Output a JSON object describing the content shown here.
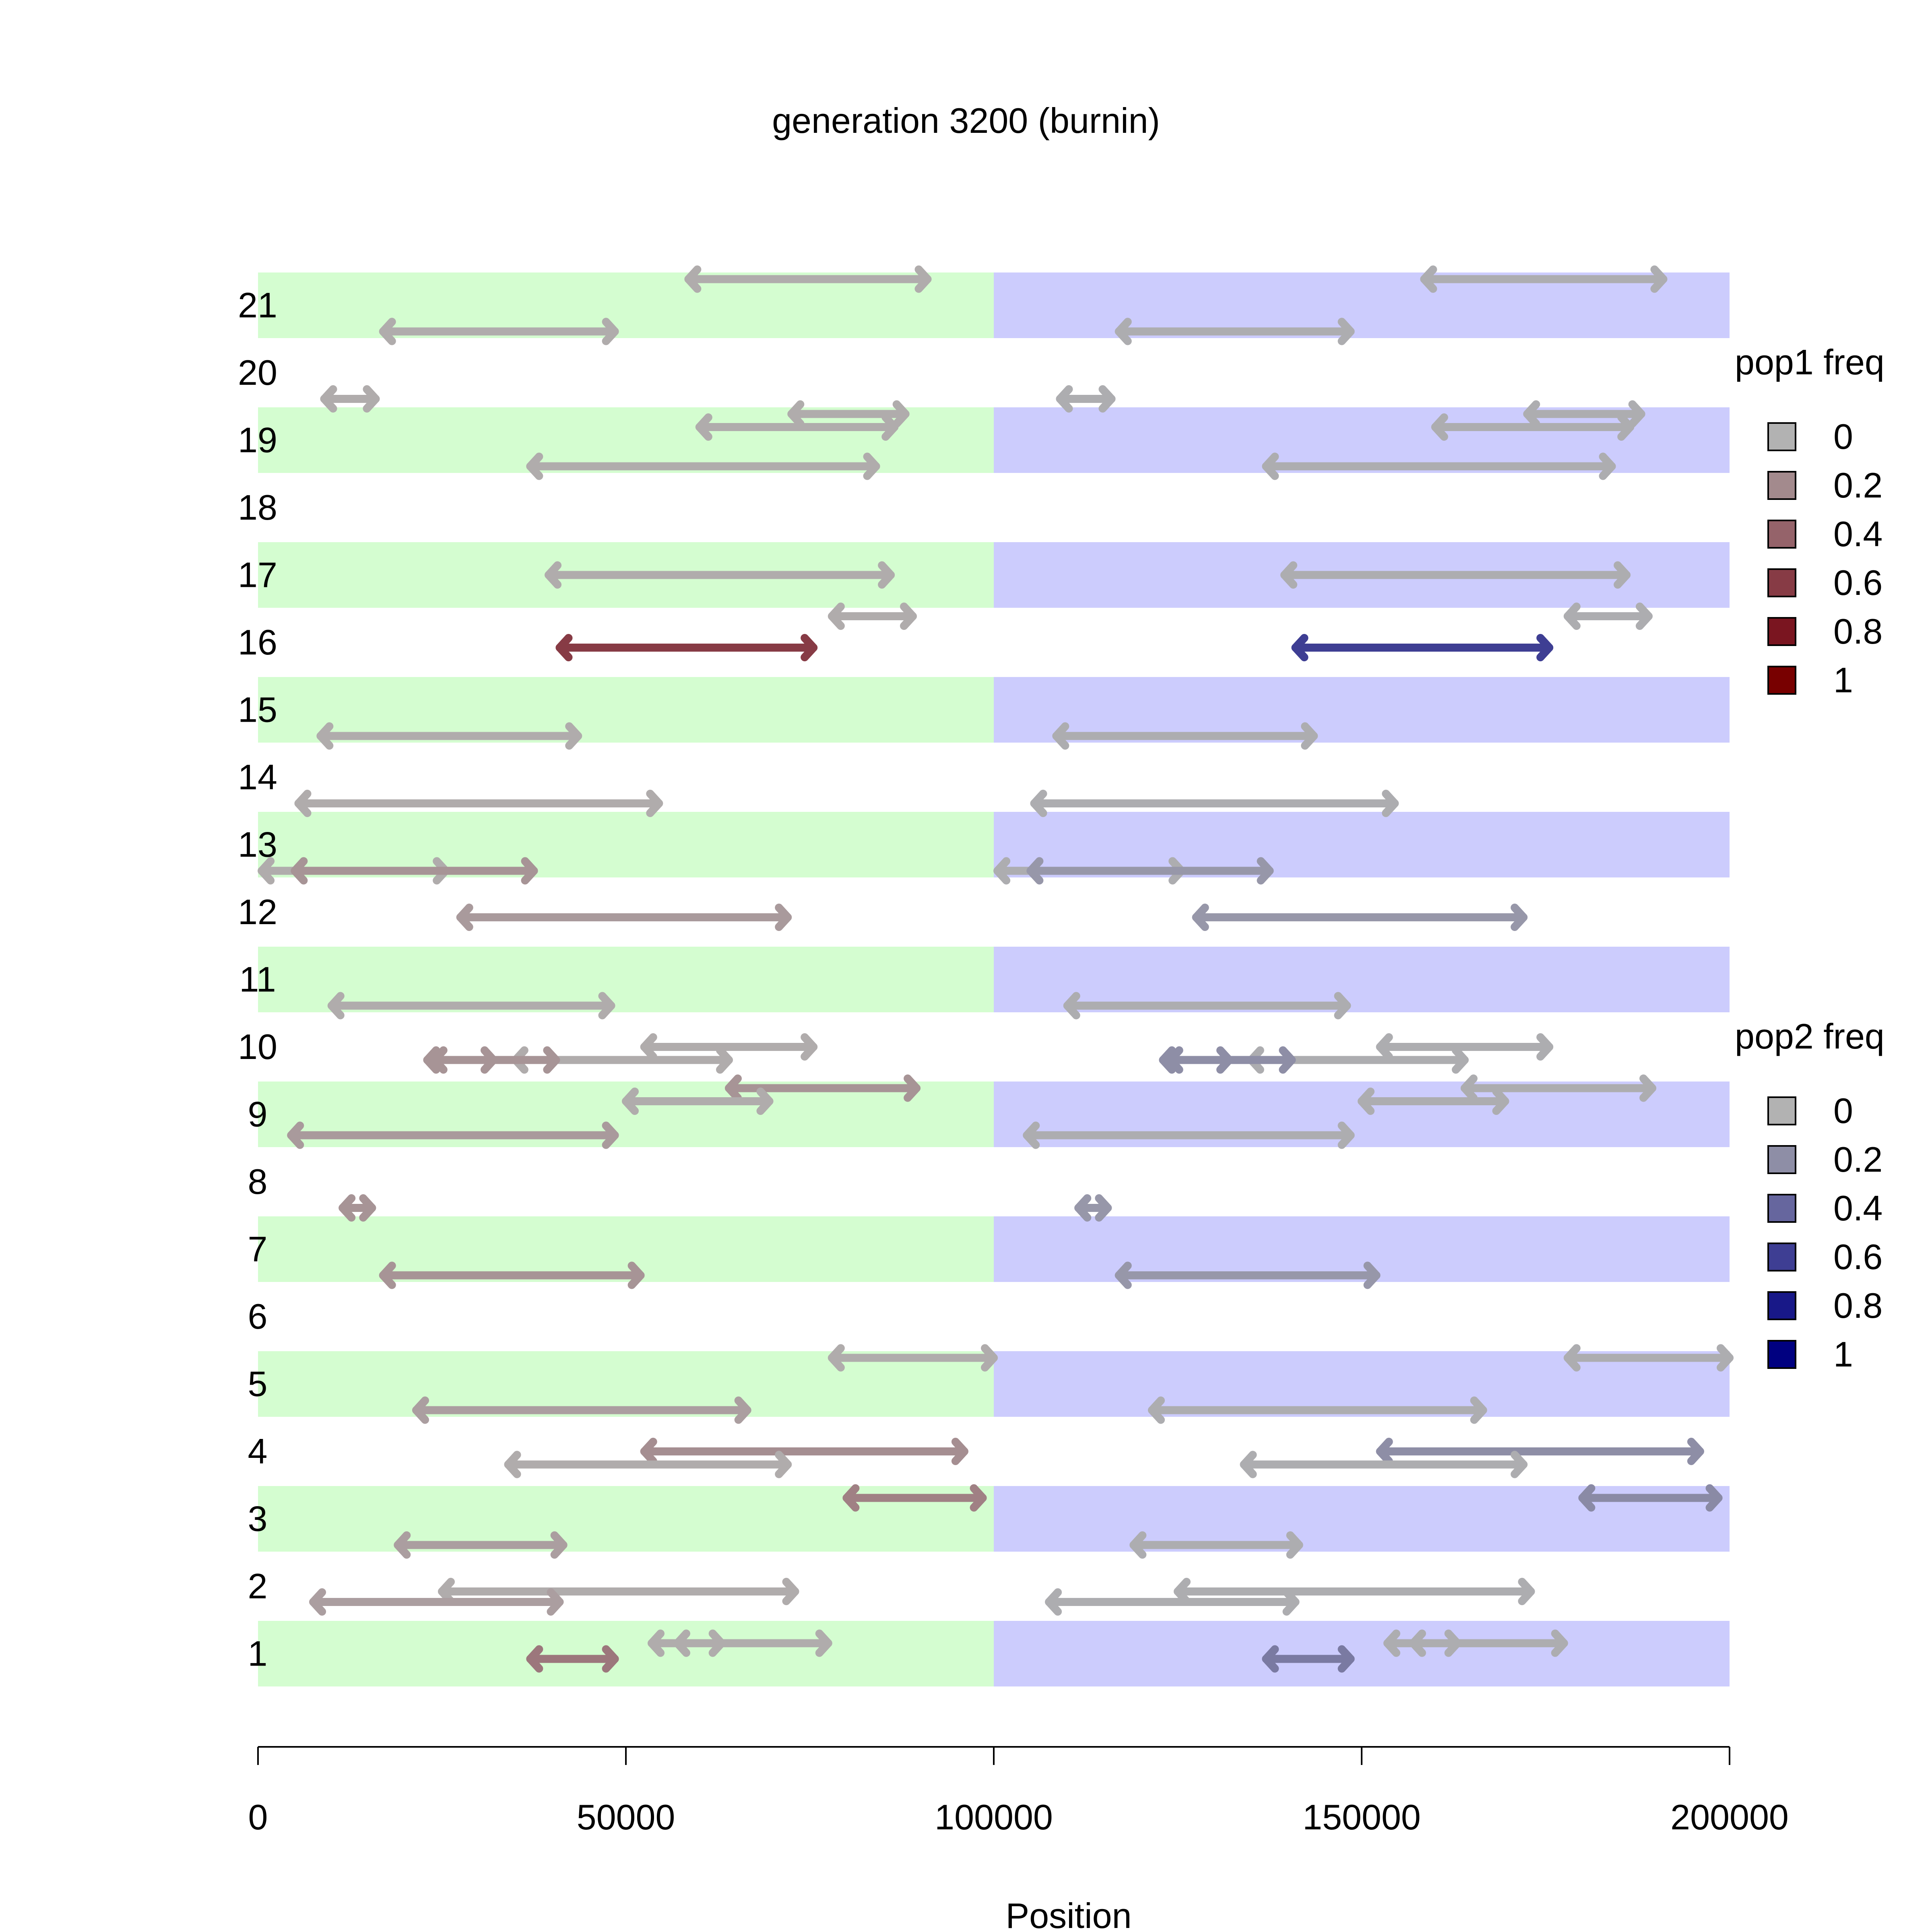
{
  "chart_data": {
    "type": "segments",
    "title": "generation 3200 (burnin)",
    "xlabel": "Position",
    "ylabel": "",
    "xlim": [
      0,
      200000
    ],
    "x_ticks": [
      0,
      50000,
      100000,
      150000,
      200000
    ],
    "x_tick_labels": [
      "0",
      "50000",
      "100000",
      "150000",
      "200000"
    ],
    "rows": [
      "1",
      "2",
      "3",
      "4",
      "5",
      "6",
      "7",
      "8",
      "9",
      "10",
      "11",
      "12",
      "13",
      "14",
      "15",
      "16",
      "17",
      "18",
      "19",
      "20",
      "21"
    ],
    "shaded_rows": [
      1,
      3,
      5,
      7,
      9,
      11,
      13,
      15,
      17,
      19,
      21
    ],
    "shaded_regions": [
      {
        "x_start": 0,
        "x_end": 100000,
        "color": "#d4fdd0"
      },
      {
        "x_start": 100000,
        "x_end": 200000,
        "color": "#ccccfd"
      }
    ],
    "legends": [
      {
        "title": "pop1 freq",
        "labels": [
          "0",
          "0.2",
          "0.4",
          "0.6",
          "0.8",
          "1"
        ],
        "colors": [
          "#b2b2b2",
          "#a38a8d",
          "#95636a",
          "#873b45",
          "#7a1520",
          "#780000"
        ],
        "placement": "right-top"
      },
      {
        "title": "pop2 freq",
        "labels": [
          "0",
          "0.2",
          "0.4",
          "0.6",
          "0.8",
          "1"
        ],
        "colors": [
          "#b2b2b2",
          "#8e8ea6",
          "#66669e",
          "#3e3e93",
          "#181888",
          "#000080"
        ],
        "placement": "right-middle"
      }
    ],
    "segments": [
      {
        "row": 21,
        "offset": 1,
        "x_start": 58500,
        "x_end": 91000,
        "freq": 0.03,
        "pop": 1
      },
      {
        "row": 21,
        "offset": -1,
        "x_start": 17000,
        "x_end": 48500,
        "freq": 0.03,
        "pop": 1
      },
      {
        "row": 21,
        "offset": 1,
        "x_start": 158500,
        "x_end": 191000,
        "freq": 0.03,
        "pop": 2
      },
      {
        "row": 21,
        "offset": -1,
        "x_start": 117000,
        "x_end": 148500,
        "freq": 0.03,
        "pop": 2
      },
      {
        "row": 20,
        "offset": -1,
        "x_start": 9000,
        "x_end": 16000,
        "freq": 0.03,
        "pop": 1
      },
      {
        "row": 20,
        "offset": -1,
        "x_start": 109000,
        "x_end": 116000,
        "freq": 0.03,
        "pop": 2
      },
      {
        "row": 19,
        "offset": 1,
        "x_start": 72500,
        "x_end": 88000,
        "freq": 0.03,
        "pop": 1
      },
      {
        "row": 19,
        "offset": 0.5,
        "x_start": 60000,
        "x_end": 86500,
        "freq": 0.03,
        "pop": 1
      },
      {
        "row": 19,
        "offset": -1,
        "x_start": 37000,
        "x_end": 84000,
        "freq": 0.03,
        "pop": 1
      },
      {
        "row": 19,
        "offset": 1,
        "x_start": 172500,
        "x_end": 188000,
        "freq": 0.03,
        "pop": 2
      },
      {
        "row": 19,
        "offset": 0.5,
        "x_start": 160000,
        "x_end": 186500,
        "freq": 0.03,
        "pop": 2
      },
      {
        "row": 19,
        "offset": -1,
        "x_start": 137000,
        "x_end": 184000,
        "freq": 0.03,
        "pop": 2
      },
      {
        "row": 17,
        "offset": 0,
        "x_start": 39500,
        "x_end": 86000,
        "freq": 0.03,
        "pop": 1
      },
      {
        "row": 17,
        "offset": 0,
        "x_start": 139500,
        "x_end": 186000,
        "freq": 0.03,
        "pop": 2
      },
      {
        "row": 16,
        "offset": 1,
        "x_start": 78000,
        "x_end": 89000,
        "freq": 0.03,
        "pop": 1
      },
      {
        "row": 16,
        "offset": -0.2,
        "x_start": 41000,
        "x_end": 75500,
        "freq": 0.6,
        "pop": 1
      },
      {
        "row": 16,
        "offset": 1,
        "x_start": 178000,
        "x_end": 189000,
        "freq": 0.03,
        "pop": 2
      },
      {
        "row": 16,
        "offset": -0.2,
        "x_start": 141000,
        "x_end": 175500,
        "freq": 0.6,
        "pop": 2
      },
      {
        "row": 15,
        "offset": -1,
        "x_start": 8500,
        "x_end": 43500,
        "freq": 0.03,
        "pop": 1
      },
      {
        "row": 15,
        "offset": -1,
        "x_start": 108500,
        "x_end": 143500,
        "freq": 0.03,
        "pop": 2
      },
      {
        "row": 14,
        "offset": -1,
        "x_start": 5500,
        "x_end": 54500,
        "freq": 0.03,
        "pop": 1
      },
      {
        "row": 14,
        "offset": -1,
        "x_start": 105500,
        "x_end": 154500,
        "freq": 0.03,
        "pop": 2
      },
      {
        "row": 13,
        "offset": -1,
        "x_start": 500,
        "x_end": 25500,
        "freq": 0.03,
        "pop": 1
      },
      {
        "row": 13,
        "offset": -1,
        "x_start": 5000,
        "x_end": 37500,
        "freq": 0.15,
        "pop": 1
      },
      {
        "row": 13,
        "offset": -1,
        "x_start": 100500,
        "x_end": 125500,
        "freq": 0.03,
        "pop": 2
      },
      {
        "row": 13,
        "offset": -1,
        "x_start": 105000,
        "x_end": 137500,
        "freq": 0.15,
        "pop": 2
      },
      {
        "row": 12,
        "offset": -0.2,
        "x_start": 27500,
        "x_end": 72000,
        "freq": 0.12,
        "pop": 1
      },
      {
        "row": 12,
        "offset": -0.2,
        "x_start": 127500,
        "x_end": 172000,
        "freq": 0.15,
        "pop": 2
      },
      {
        "row": 11,
        "offset": -1,
        "x_start": 10000,
        "x_end": 48000,
        "freq": 0.03,
        "pop": 1
      },
      {
        "row": 11,
        "offset": -1,
        "x_start": 110000,
        "x_end": 148000,
        "freq": 0.03,
        "pop": 2
      },
      {
        "row": 10,
        "offset": 0,
        "x_start": 52500,
        "x_end": 75500,
        "freq": 0.03,
        "pop": 1
      },
      {
        "row": 10,
        "offset": -0.5,
        "x_start": 35000,
        "x_end": 64000,
        "freq": 0.03,
        "pop": 1
      },
      {
        "row": 10,
        "offset": -0.5,
        "x_start": 24000,
        "x_end": 40500,
        "freq": 0.15,
        "pop": 1
      },
      {
        "row": 10,
        "offset": -0.5,
        "x_start": 23000,
        "x_end": 32000,
        "freq": 0.15,
        "pop": 1
      },
      {
        "row": 10,
        "offset": 0,
        "x_start": 152500,
        "x_end": 175500,
        "freq": 0.03,
        "pop": 2
      },
      {
        "row": 10,
        "offset": -0.5,
        "x_start": 135000,
        "x_end": 164000,
        "freq": 0.03,
        "pop": 2
      },
      {
        "row": 10,
        "offset": -0.5,
        "x_start": 124000,
        "x_end": 140500,
        "freq": 0.2,
        "pop": 2
      },
      {
        "row": 10,
        "offset": -0.5,
        "x_start": 123000,
        "x_end": 132000,
        "freq": 0.2,
        "pop": 2
      },
      {
        "row": 9,
        "offset": 1,
        "x_start": 64000,
        "x_end": 89500,
        "freq": 0.15,
        "pop": 1
      },
      {
        "row": 9,
        "offset": 0.5,
        "x_start": 50000,
        "x_end": 69500,
        "freq": 0.03,
        "pop": 1
      },
      {
        "row": 9,
        "offset": -0.8,
        "x_start": 4500,
        "x_end": 48500,
        "freq": 0.12,
        "pop": 1
      },
      {
        "row": 9,
        "offset": 1,
        "x_start": 164000,
        "x_end": 189500,
        "freq": 0.03,
        "pop": 2
      },
      {
        "row": 9,
        "offset": 0.5,
        "x_start": 150000,
        "x_end": 169500,
        "freq": 0.03,
        "pop": 2
      },
      {
        "row": 9,
        "offset": -0.8,
        "x_start": 104500,
        "x_end": 148500,
        "freq": 0.03,
        "pop": 2
      },
      {
        "row": 8,
        "offset": -1,
        "x_start": 11500,
        "x_end": 15500,
        "freq": 0.15,
        "pop": 1
      },
      {
        "row": 8,
        "offset": -1,
        "x_start": 111500,
        "x_end": 115500,
        "freq": 0.15,
        "pop": 2
      },
      {
        "row": 7,
        "offset": -1,
        "x_start": 17000,
        "x_end": 52000,
        "freq": 0.15,
        "pop": 1
      },
      {
        "row": 7,
        "offset": -1,
        "x_start": 117000,
        "x_end": 152000,
        "freq": 0.15,
        "pop": 2
      },
      {
        "row": 5,
        "offset": 1,
        "x_start": 78000,
        "x_end": 100000,
        "freq": 0.03,
        "pop": 1
      },
      {
        "row": 5,
        "offset": -1,
        "x_start": 21500,
        "x_end": 66500,
        "freq": 0.1,
        "pop": 1
      },
      {
        "row": 5,
        "offset": 1,
        "x_start": 178000,
        "x_end": 200000,
        "freq": 0.03,
        "pop": 2
      },
      {
        "row": 5,
        "offset": -1,
        "x_start": 121500,
        "x_end": 166500,
        "freq": 0.03,
        "pop": 2
      },
      {
        "row": 4,
        "offset": 0,
        "x_start": 52500,
        "x_end": 96000,
        "freq": 0.18,
        "pop": 1
      },
      {
        "row": 4,
        "offset": -0.5,
        "x_start": 34000,
        "x_end": 72000,
        "freq": 0.03,
        "pop": 1
      },
      {
        "row": 4,
        "offset": 0,
        "x_start": 152500,
        "x_end": 196000,
        "freq": 0.2,
        "pop": 2
      },
      {
        "row": 4,
        "offset": -0.5,
        "x_start": 134000,
        "x_end": 172000,
        "freq": 0.03,
        "pop": 2
      },
      {
        "row": 3,
        "offset": 0.8,
        "x_start": 80000,
        "x_end": 98500,
        "freq": 0.25,
        "pop": 1
      },
      {
        "row": 3,
        "offset": -1,
        "x_start": 19000,
        "x_end": 41500,
        "freq": 0.1,
        "pop": 1
      },
      {
        "row": 3,
        "offset": 0.8,
        "x_start": 180000,
        "x_end": 198500,
        "freq": 0.22,
        "pop": 2
      },
      {
        "row": 3,
        "offset": -1,
        "x_start": 119000,
        "x_end": 141500,
        "freq": 0.03,
        "pop": 2
      },
      {
        "row": 2,
        "offset": -0.2,
        "x_start": 25000,
        "x_end": 73000,
        "freq": 0.03,
        "pop": 1
      },
      {
        "row": 2,
        "offset": -0.6,
        "x_start": 7500,
        "x_end": 41000,
        "freq": 0.1,
        "pop": 1
      },
      {
        "row": 2,
        "offset": -0.2,
        "x_start": 125000,
        "x_end": 173000,
        "freq": 0.03,
        "pop": 2
      },
      {
        "row": 2,
        "offset": -0.6,
        "x_start": 107500,
        "x_end": 141000,
        "freq": 0.03,
        "pop": 2
      },
      {
        "row": 1,
        "offset": 0.4,
        "x_start": 53500,
        "x_end": 77500,
        "freq": 0.03,
        "pop": 1
      },
      {
        "row": 1,
        "offset": 0.4,
        "x_start": 57000,
        "x_end": 63000,
        "freq": 0.03,
        "pop": 1
      },
      {
        "row": 1,
        "offset": -0.2,
        "x_start": 37000,
        "x_end": 48500,
        "freq": 0.3,
        "pop": 1
      },
      {
        "row": 1,
        "offset": 0.4,
        "x_start": 153500,
        "x_end": 177500,
        "freq": 0.03,
        "pop": 2
      },
      {
        "row": 1,
        "offset": 0.4,
        "x_start": 157000,
        "x_end": 163000,
        "freq": 0.03,
        "pop": 2
      },
      {
        "row": 1,
        "offset": -0.2,
        "x_start": 137000,
        "x_end": 148500,
        "freq": 0.3,
        "pop": 2
      }
    ]
  }
}
